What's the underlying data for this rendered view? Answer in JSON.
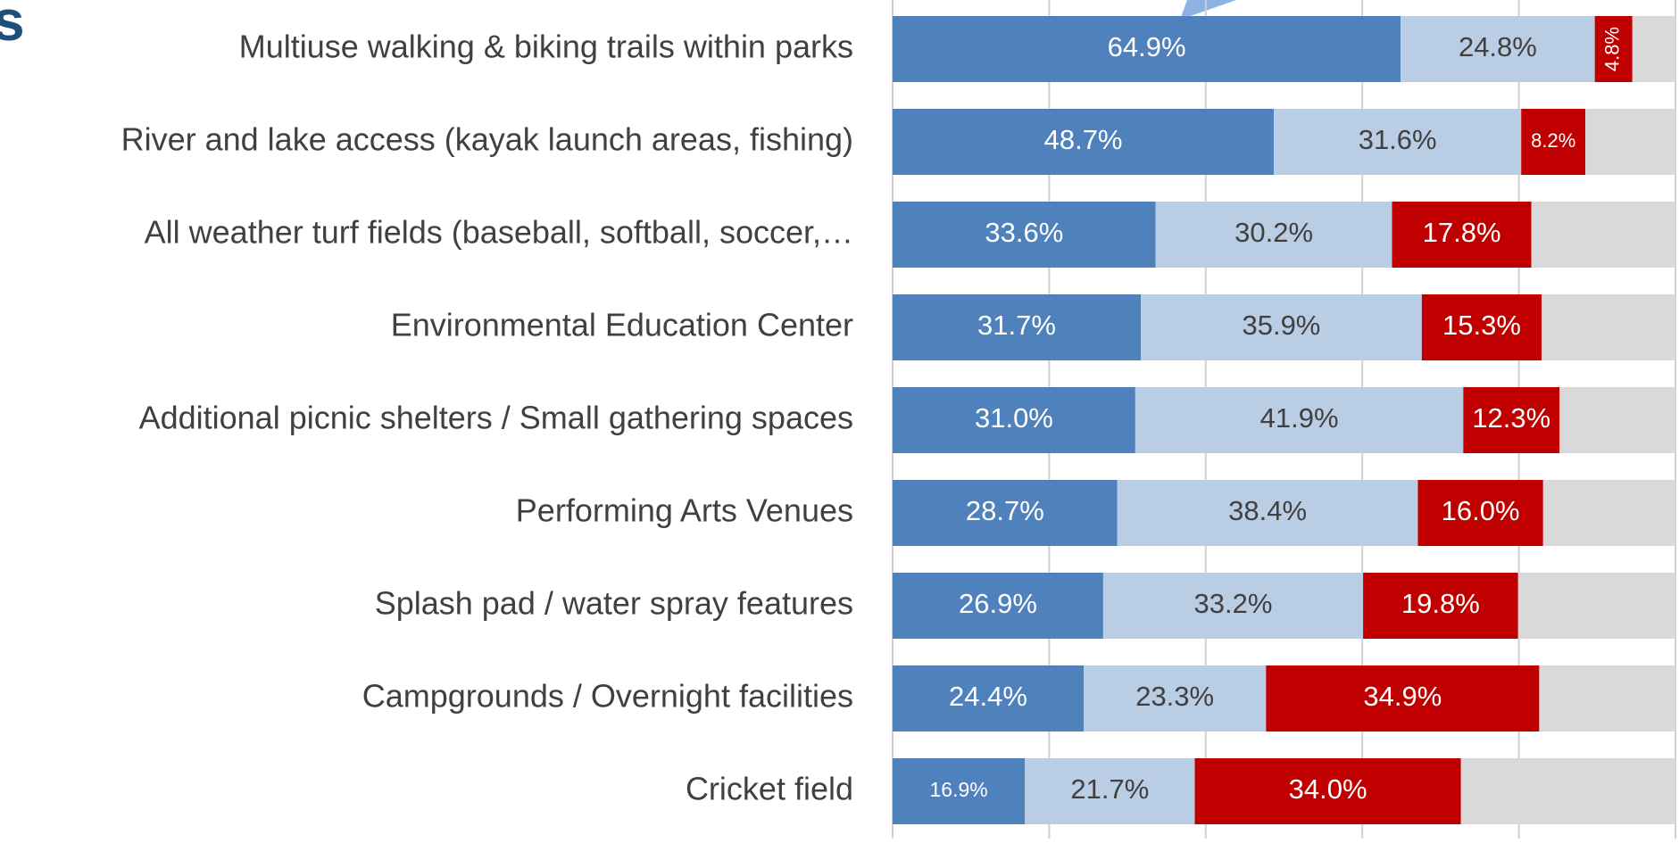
{
  "chart_data": {
    "type": "stacked_barh",
    "title": "s",
    "categories": [
      "Multiuse walking & biking trails within parks",
      "River and lake access (kayak launch areas, fishing)",
      "All weather turf fields (baseball, softball, soccer,…",
      "Environmental Education Center",
      "Additional picnic shelters / Small gathering spaces",
      "Performing Arts Venues",
      "Splash pad / water spray features",
      "Campgrounds / Overnight facilities",
      "Cricket field"
    ],
    "series": [
      {
        "color": "#4f81bd",
        "values": [
          64.9,
          48.7,
          33.6,
          31.7,
          31.0,
          28.7,
          26.9,
          24.4,
          16.9
        ],
        "value_labels": [
          "64.9%",
          "48.7%",
          "33.6%",
          "31.7%",
          "31.0%",
          "28.7%",
          "26.9%",
          "24.4%",
          "16.9%"
        ]
      },
      {
        "color": "#b9cde5",
        "values": [
          24.8,
          31.6,
          30.2,
          35.9,
          41.9,
          38.4,
          33.2,
          23.3,
          21.7
        ],
        "value_labels": [
          "24.8%",
          "31.6%",
          "30.2%",
          "35.9%",
          "41.9%",
          "38.4%",
          "33.2%",
          "23.3%",
          "21.7%"
        ]
      },
      {
        "color": "#c00000",
        "values": [
          4.8,
          8.2,
          17.8,
          15.3,
          12.3,
          16.0,
          19.8,
          34.9,
          34.0
        ],
        "value_labels": [
          "4.8%",
          "8.2%",
          "17.8%",
          "15.3%",
          "12.3%",
          "16.0%",
          "19.8%",
          "34.9%",
          "34.0%"
        ]
      },
      {
        "color": "#d9d9d9",
        "values": [
          5.5,
          11.5,
          18.4,
          17.1,
          14.8,
          16.9,
          20.1,
          17.4,
          27.4
        ]
      }
    ],
    "xlim": [
      0,
      100
    ],
    "xticks": [
      0,
      20,
      40,
      60,
      80,
      100
    ],
    "grid": true
  }
}
